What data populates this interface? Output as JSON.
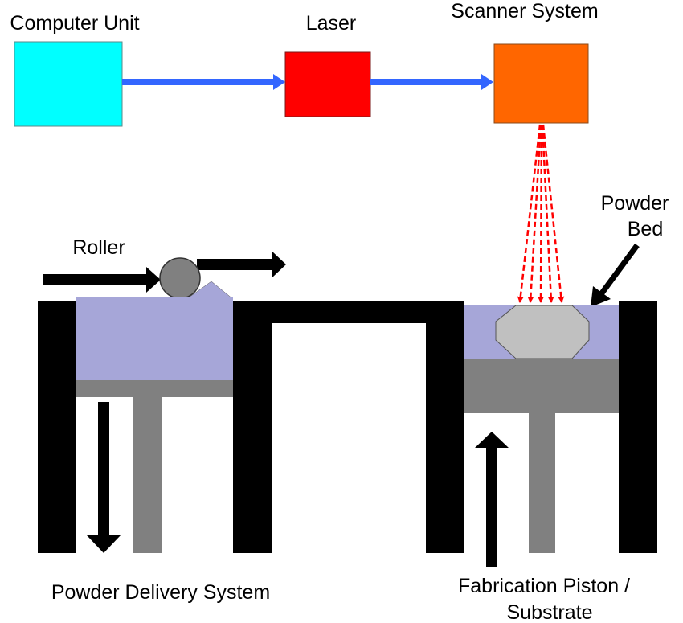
{
  "labels": {
    "computer_unit": "Computer Unit",
    "laser": "Laser",
    "scanner_system": "Scanner System",
    "roller": "Roller",
    "powder_bed_line1": "Powder",
    "powder_bed_line2": "Bed",
    "powder_delivery_system": "Powder Delivery System",
    "fabrication_piston_line1": "Fabrication Piston /",
    "fabrication_piston_line2": "Substrate"
  },
  "colors": {
    "computer_unit": "#00FFFF",
    "laser": "#FF0000",
    "scanner_system": "#FF6600",
    "connector_arrow": "#3366FF",
    "laser_beam": "#FF0000",
    "powder": "#A6A6D8",
    "piston": "#808080",
    "part": "#C0C0C0",
    "frame": "#000000"
  }
}
